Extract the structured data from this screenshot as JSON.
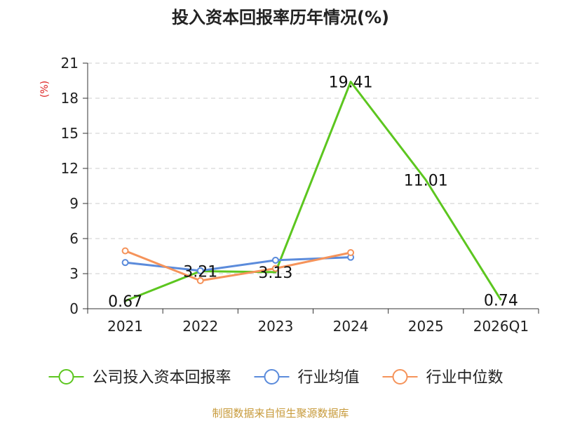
{
  "chart_data": {
    "type": "line",
    "title": "投入资本回报率历年情况(%)",
    "ylabel": "(%)",
    "categories": [
      "2021",
      "2022",
      "2023",
      "2024",
      "2025",
      "2026Q1"
    ],
    "ylim": [
      0,
      21
    ],
    "yticks": [
      0,
      3,
      6,
      9,
      12,
      15,
      18,
      21
    ],
    "grid": true,
    "legend_position": "bottom",
    "series": [
      {
        "name": "公司投入资本回报率",
        "color": "#5cc61f",
        "values": [
          0.67,
          3.21,
          3.13,
          19.41,
          11.01,
          0.74
        ],
        "labels": [
          "0.67",
          "3.21",
          "3.13",
          "19.41",
          "11.01",
          "0.74"
        ]
      },
      {
        "name": "行业均值",
        "color": "#5b8bdb",
        "values": [
          3.95,
          3.25,
          4.15,
          4.4,
          null,
          null
        ]
      },
      {
        "name": "行业中位数",
        "color": "#f5935a",
        "values": [
          4.95,
          2.4,
          3.45,
          4.8,
          null,
          null
        ]
      }
    ]
  },
  "source": "制图数据来自恒生聚源数据库",
  "colors": {
    "unit": "#dd2222",
    "source": "#c79a3a",
    "grid": "#cccccc",
    "axis": "#333333"
  }
}
